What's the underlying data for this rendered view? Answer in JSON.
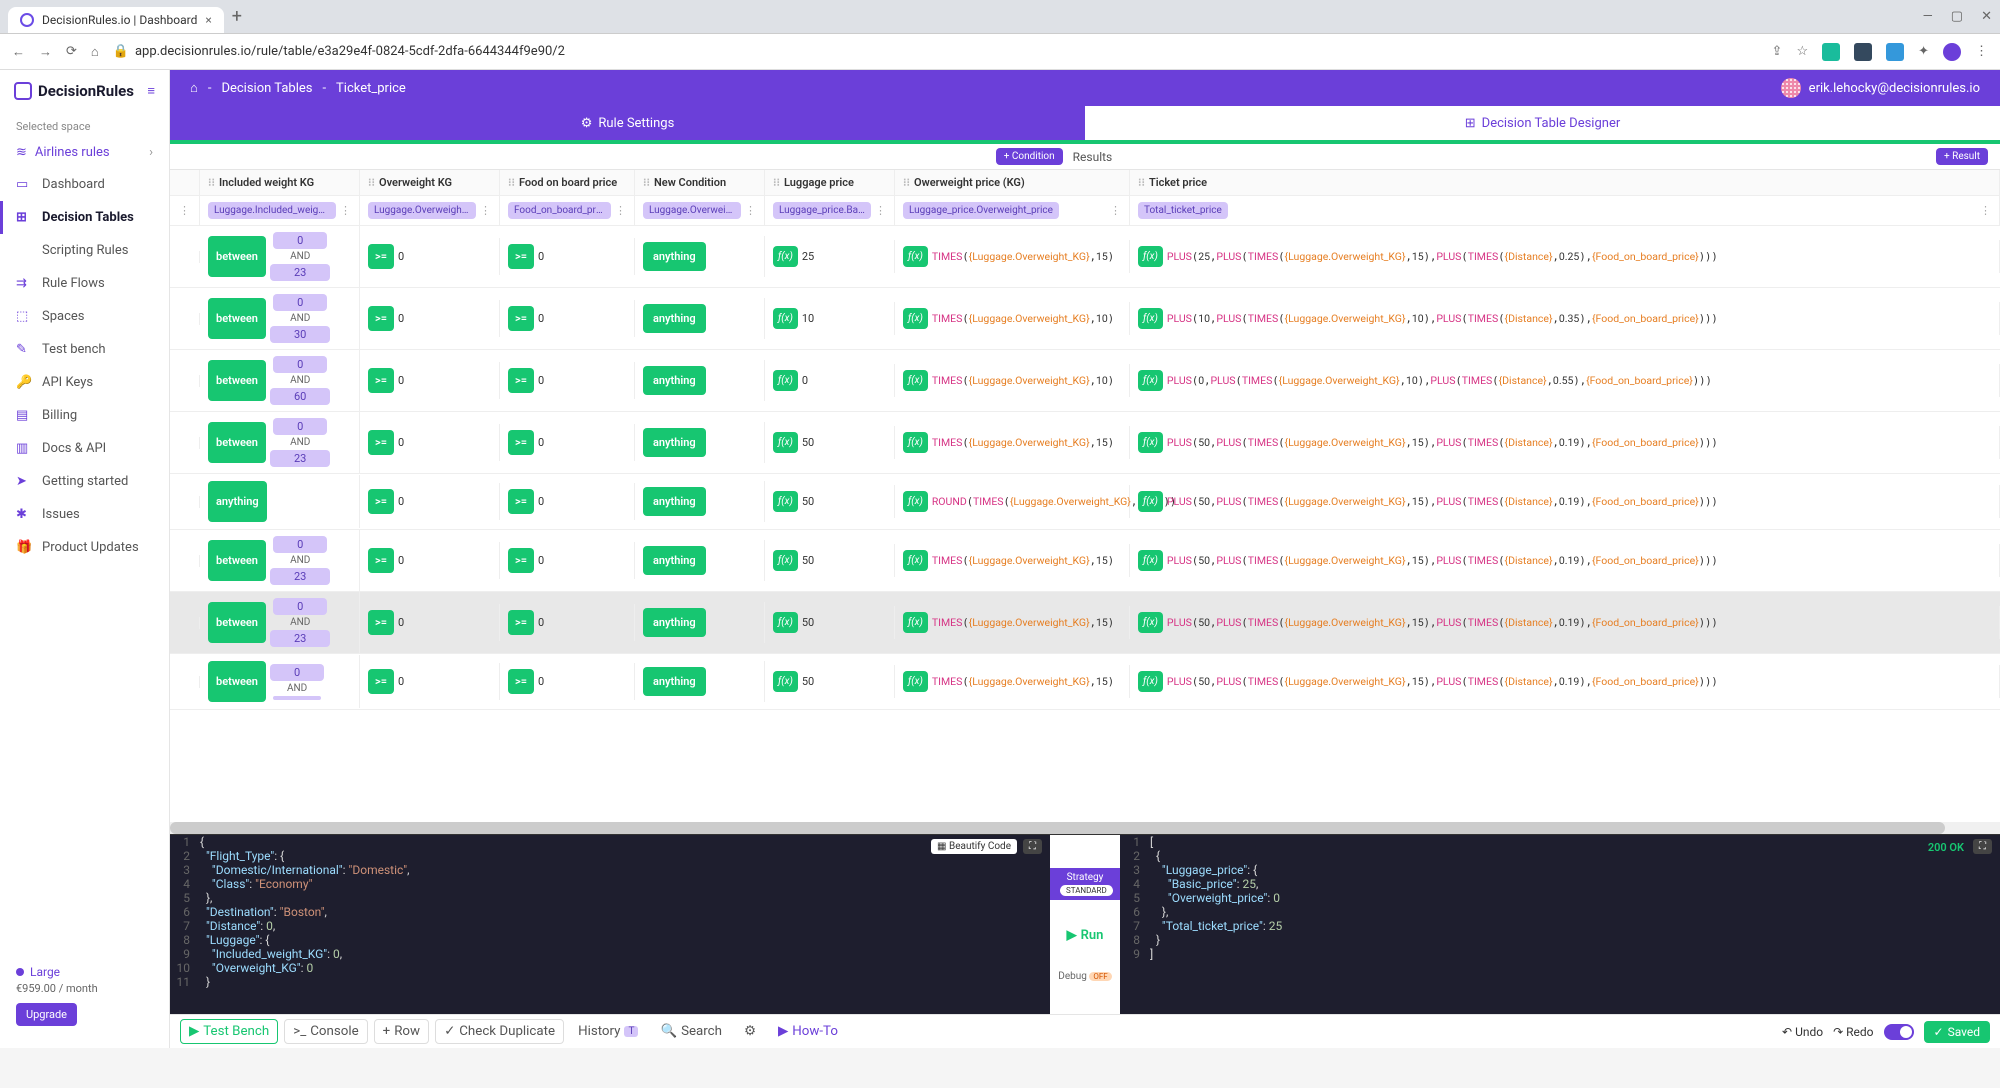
{
  "browser": {
    "tab_title": "DecisionRules.io | Dashboard",
    "url": "app.decisionrules.io/rule/table/e3a29e4f-0824-5cdf-2dfa-6644344f9e90/2"
  },
  "header": {
    "breadcrumb_home_icon": "⌂",
    "breadcrumb1": "Decision Tables",
    "breadcrumb2": "Ticket_price",
    "user_email": "erik.lehocky@decisionrules.io",
    "tab_settings": "Rule Settings",
    "tab_designer": "Decision Table Designer"
  },
  "sidebar": {
    "logo": "DecisionRules",
    "selected_space_label": "Selected space",
    "selected_space": "Airlines rules",
    "items": [
      {
        "icon": "▭",
        "label": "Dashboard"
      },
      {
        "icon": "⊞",
        "label": "Decision Tables"
      },
      {
        "icon": "</>",
        "label": "Scripting Rules"
      },
      {
        "icon": "⇉",
        "label": "Rule Flows"
      },
      {
        "icon": "⬚",
        "label": "Spaces"
      },
      {
        "icon": "✎",
        "label": "Test bench"
      },
      {
        "icon": "🔑",
        "label": "API Keys"
      },
      {
        "icon": "▤",
        "label": "Billing"
      },
      {
        "icon": "▥",
        "label": "Docs & API"
      },
      {
        "icon": "➤",
        "label": "Getting started"
      },
      {
        "icon": "✱",
        "label": "Issues"
      },
      {
        "icon": "🎁",
        "label": "Product Updates"
      }
    ],
    "plan_name": "Large",
    "plan_price": "€959.00 / month",
    "upgrade": "Upgrade"
  },
  "toolbar": {
    "condition_btn": "+ Condition",
    "results_label": "Results",
    "result_btn": "+ Result"
  },
  "table": {
    "columns": [
      {
        "title": "Included weight KG",
        "path": "Luggage.Included_weight_KG"
      },
      {
        "title": "Overweight KG",
        "path": "Luggage.Overweight_KG"
      },
      {
        "title": "Food on board price",
        "path": "Food_on_board_price"
      },
      {
        "title": "New Condition",
        "path": "Luggage.Overweight_KG"
      },
      {
        "title": "Luggage price",
        "path": "Luggage_price.Basic_price"
      },
      {
        "title": "Owerweight price (KG)",
        "path": "Luggage_price.Overweight_price"
      },
      {
        "title": "Ticket price",
        "path": "Total_ticket_price"
      }
    ],
    "rows": [
      {
        "between_lo": "0",
        "between_hi": "23",
        "ov": ">=",
        "ov_val": "0",
        "food": ">=",
        "food_val": "0",
        "cond": "anything",
        "lp": "25",
        "owp": "TIMES({Luggage.Overweight_KG},15)",
        "tp": "PLUS(25,PLUS(TIMES({Luggage.Overweight_KG},15),PLUS(TIMES({Distance},0.25),{Food_on_board_price})))"
      },
      {
        "between_lo": "0",
        "between_hi": "30",
        "ov": ">=",
        "ov_val": "0",
        "food": ">=",
        "food_val": "0",
        "cond": "anything",
        "lp": "10",
        "owp": "TIMES({Luggage.Overweight_KG},10)",
        "tp": "PLUS(10,PLUS(TIMES({Luggage.Overweight_KG},10),PLUS(TIMES({Distance},0.35),{Food_on_board_price})))"
      },
      {
        "between_lo": "0",
        "between_hi": "60",
        "ov": ">=",
        "ov_val": "0",
        "food": ">=",
        "food_val": "0",
        "cond": "anything",
        "lp": "0",
        "owp": "TIMES({Luggage.Overweight_KG},10)",
        "tp": "PLUS(0,PLUS(TIMES({Luggage.Overweight_KG},10),PLUS(TIMES({Distance},0.55),{Food_on_board_price})))"
      },
      {
        "between_lo": "0",
        "between_hi": "23",
        "ov": ">=",
        "ov_val": "0",
        "food": ">=",
        "food_val": "0",
        "cond": "anything",
        "lp": "50",
        "owp": "TIMES({Luggage.Overweight_KG},15)",
        "tp": "PLUS(50,PLUS(TIMES({Luggage.Overweight_KG},15),PLUS(TIMES({Distance},0.19),{Food_on_board_price})))"
      },
      {
        "anything": true,
        "ov": ">=",
        "ov_val": "0",
        "food": ">=",
        "food_val": "0",
        "cond": "anything",
        "lp": "50",
        "owp": "ROUND(TIMES({Luggage.Overweight_KG},12.38))",
        "tp": "PLUS(50,PLUS(TIMES({Luggage.Overweight_KG},15),PLUS(TIMES({Distance},0.19),{Food_on_board_price})))"
      },
      {
        "between_lo": "0",
        "between_hi": "23",
        "ov": ">=",
        "ov_val": "0",
        "food": ">=",
        "food_val": "0",
        "cond": "anything",
        "lp": "50",
        "owp": "TIMES({Luggage.Overweight_KG},15)",
        "tp": "PLUS(50,PLUS(TIMES({Luggage.Overweight_KG},15),PLUS(TIMES({Distance},0.19),{Food_on_board_price})))"
      },
      {
        "between_lo": "0",
        "between_hi": "23",
        "ov": ">=",
        "ov_val": "0",
        "food": ">=",
        "food_val": "0",
        "cond": "anything",
        "lp": "50",
        "owp": "TIMES({Luggage.Overweight_KG},15)",
        "tp": "PLUS(50,PLUS(TIMES({Luggage.Overweight_KG},15),PLUS(TIMES({Distance},0.19),{Food_on_board_price})))",
        "highlighted": true
      },
      {
        "between_lo": "0",
        "between_hi": "",
        "ov": ">=",
        "ov_val": "0",
        "food": ">=",
        "food_val": "0",
        "cond": "anything",
        "lp": "50",
        "owp": "TIMES({Luggage.Overweight_KG},15)",
        "tp": "PLUS(50,PLUS(TIMES({Luggage.Overweight_KG},15),PLUS(TIMES({Distance},0.19),{Food_on_board_price})))"
      }
    ]
  },
  "code": {
    "beautify": "Beautify Code",
    "strategy": "Strategy",
    "strategy_mode": "STANDARD",
    "run": "Run",
    "debug": "Debug",
    "debug_state": "OFF",
    "status": "200 OK",
    "input_lines": [
      "{",
      "  \"Flight_Type\": {",
      "    \"Domestic/International\": \"Domestic\",",
      "    \"Class\": \"Economy\"",
      "  },",
      "  \"Destination\": \"Boston\",",
      "  \"Distance\": 0,",
      "  \"Luggage\": {",
      "    \"Included_weight_KG\": 0,",
      "    \"Overweight_KG\": 0",
      "  }"
    ],
    "output_lines": [
      "[",
      "  {",
      "    \"Luggage_price\": {",
      "      \"Basic_price\": 25,",
      "      \"Overweight_price\": 0",
      "    },",
      "    \"Total_ticket_price\": 25",
      "  }",
      "]"
    ]
  },
  "bottom": {
    "test_bench": "Test Bench",
    "console": "Console",
    "row": "Row",
    "check_dup": "Check Duplicate",
    "history": "History",
    "history_badge": "T",
    "search": "Search",
    "howto": "How-To",
    "undo": "Undo",
    "redo": "Redo",
    "saved": "Saved"
  },
  "colors": {
    "purple": "#6b3fd9",
    "green": "#17c671",
    "lilac": "#d4c5f9",
    "formula_fn": "#d63384",
    "formula_var": "#e67e22"
  }
}
